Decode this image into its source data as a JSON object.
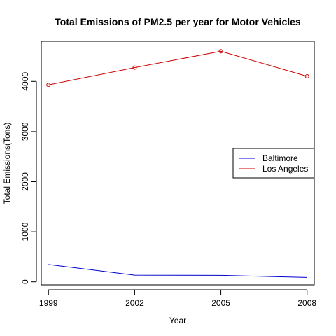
{
  "chart_data": {
    "type": "line",
    "title": "Total Emissions of PM2.5 per year for Motor Vehicles",
    "xlabel": "Year",
    "ylabel": "Total Emissions(Tons)",
    "x": [
      1999,
      2002,
      2005,
      2008
    ],
    "xticks": [
      "1999",
      "2002",
      "2005",
      "2008"
    ],
    "yticks": [
      0,
      1000,
      2000,
      3000,
      4000
    ],
    "xlim": [
      1998.75,
      2008.25
    ],
    "ylim": [
      -60,
      4800
    ],
    "grid": false,
    "legend_position": "right",
    "series": [
      {
        "name": "Baltimore",
        "color": "#0000cd",
        "values": [
          346.8,
          134.3,
          130.4,
          88.3
        ],
        "markers": false
      },
      {
        "name": "Los Angeles",
        "color": "#cd0000",
        "values": [
          3931.1,
          4274.0,
          4601.4,
          4101.3
        ],
        "markers": true
      }
    ]
  }
}
